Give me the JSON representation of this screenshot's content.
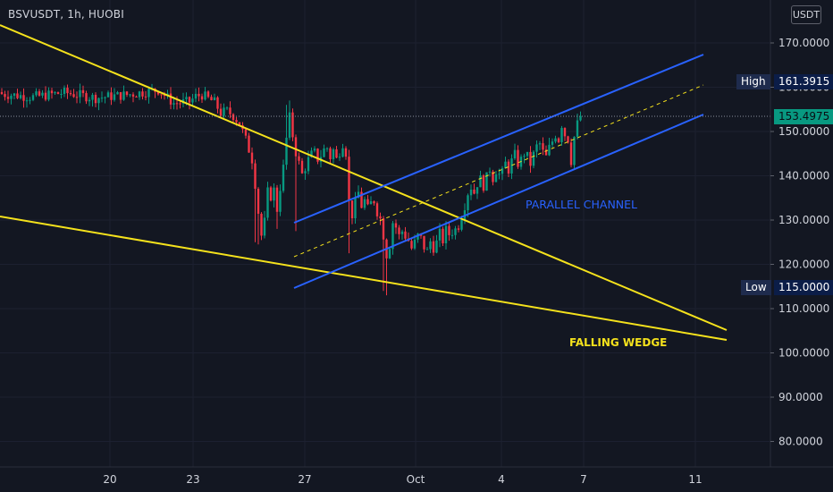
{
  "header": {
    "symbol_line": "BSVUSDT, 1h, HUOBI",
    "unit_button": "USDT"
  },
  "chart_data": {
    "type": "candlestick",
    "symbol": "BSVUSDT",
    "interval": "1h",
    "exchange": "HUOBI",
    "y_ticks": [
      "170.0000",
      "160.0000",
      "150.0000",
      "140.0000",
      "130.0000",
      "120.0000",
      "110.0000",
      "100.0000",
      "90.0000",
      "80.0000"
    ],
    "x_ticks": [
      "20",
      "23",
      "27",
      "Oct",
      "4",
      "7",
      "11"
    ],
    "ylim": [
      75,
      180
    ],
    "current_price": "153.4975",
    "high": {
      "label": "High",
      "value": "161.3915"
    },
    "low": {
      "label": "Low",
      "value": "115.0000"
    },
    "close_path": [
      [
        0,
        158.5
      ],
      [
        10,
        157.8
      ],
      [
        20,
        158.8
      ],
      [
        30,
        157.6
      ],
      [
        40,
        158.3
      ],
      [
        50,
        159.4
      ],
      [
        55,
        156.4
      ],
      [
        60,
        156.7
      ],
      [
        62,
        157.9
      ],
      [
        64,
        158.3
      ],
      [
        66,
        157.4
      ],
      [
        68,
        156.6
      ],
      [
        70,
        154.2
      ],
      [
        72,
        154.6
      ],
      [
        74,
        153.6
      ],
      [
        76,
        151.8
      ],
      [
        78,
        148.1
      ],
      [
        80,
        143.7
      ],
      [
        81,
        138.2
      ],
      [
        82,
        131.8
      ],
      [
        83,
        126.5
      ],
      [
        84,
        129.6
      ],
      [
        85,
        136.3
      ],
      [
        86,
        135.4
      ],
      [
        87,
        136.8
      ],
      [
        88,
        132.4
      ],
      [
        89,
        137.4
      ],
      [
        90,
        141.8
      ],
      [
        91,
        148.4
      ],
      [
        92,
        153.2
      ],
      [
        93,
        149.1
      ],
      [
        94,
        145.3
      ],
      [
        95,
        142.8
      ],
      [
        96,
        140.3
      ],
      [
        97,
        141.9
      ],
      [
        98,
        143.6
      ],
      [
        99,
        144.8
      ],
      [
        100,
        145.2
      ],
      [
        101,
        143.8
      ],
      [
        102,
        144.6
      ],
      [
        103,
        145.9
      ],
      [
        104,
        146.3
      ],
      [
        105,
        144.2
      ],
      [
        106,
        145.8
      ],
      [
        107,
        143.7
      ],
      [
        108,
        145.5
      ],
      [
        109,
        147.4
      ],
      [
        110,
        145.3
      ],
      [
        111,
        134.0
      ],
      [
        112,
        131.2
      ],
      [
        113,
        133.8
      ],
      [
        114,
        136.2
      ],
      [
        115,
        133.2
      ],
      [
        116,
        134.4
      ],
      [
        117,
        132.5
      ],
      [
        118,
        133.8
      ],
      [
        119,
        134.4
      ],
      [
        120,
        131.9
      ],
      [
        121,
        130.3
      ],
      [
        122,
        126.6
      ],
      [
        123,
        122.2
      ],
      [
        124,
        124.4
      ],
      [
        125,
        129.5
      ],
      [
        126,
        128.4
      ],
      [
        127,
        126.4
      ],
      [
        128,
        127.5
      ],
      [
        129,
        126.4
      ],
      [
        130,
        125.4
      ],
      [
        131,
        123.6
      ],
      [
        132,
        124.9
      ],
      [
        133,
        126.4
      ],
      [
        134,
        125.8
      ],
      [
        135,
        123.9
      ],
      [
        136,
        122.9
      ],
      [
        137,
        125.2
      ],
      [
        138,
        123.8
      ],
      [
        139,
        124.9
      ],
      [
        140,
        126.9
      ],
      [
        141,
        125.4
      ],
      [
        142,
        127.7
      ],
      [
        143,
        126.8
      ],
      [
        144,
        127.4
      ],
      [
        145,
        127.9
      ],
      [
        146,
        128.8
      ],
      [
        147,
        131.1
      ],
      [
        148,
        133.4
      ],
      [
        149,
        136.2
      ],
      [
        150,
        137.5
      ],
      [
        151,
        136.2
      ],
      [
        152,
        138.3
      ],
      [
        153,
        139.2
      ],
      [
        154,
        137.8
      ],
      [
        155,
        139.6
      ],
      [
        156,
        141.6
      ],
      [
        157,
        139.5
      ],
      [
        158,
        141.3
      ],
      [
        159,
        140.3
      ],
      [
        160,
        140.6
      ],
      [
        161,
        142.8
      ],
      [
        162,
        141.4
      ],
      [
        163,
        143.3
      ],
      [
        164,
        144.7
      ],
      [
        165,
        142.8
      ],
      [
        166,
        143.6
      ],
      [
        167,
        145.1
      ],
      [
        168,
        144.3
      ],
      [
        169,
        142.7
      ],
      [
        170,
        144.8
      ],
      [
        171,
        146.6
      ],
      [
        172,
        147.2
      ],
      [
        173,
        145.3
      ],
      [
        174,
        144.2
      ],
      [
        175,
        146.3
      ],
      [
        176,
        147.8
      ],
      [
        177,
        149.3
      ],
      [
        178,
        148.2
      ],
      [
        179,
        151.6
      ],
      [
        180,
        149.3
      ],
      [
        181,
        148.3
      ],
      [
        182,
        143.4
      ],
      [
        183,
        148.8
      ],
      [
        184,
        151.7
      ],
      [
        185,
        153.5
      ]
    ],
    "drawings": [
      {
        "type": "trend_line",
        "color": "#f5e21c"
      },
      {
        "type": "trend_line",
        "color": "#f5e21c"
      },
      {
        "type": "trend_line",
        "color": "#2962ff"
      },
      {
        "type": "trend_line",
        "color": "#2962ff"
      },
      {
        "type": "dashed_median",
        "color": "#f5e21c"
      }
    ],
    "annotations": [
      "PARALLEL CHANNEL",
      "FALLING WEDGE"
    ],
    "colors": {
      "background": "#131722",
      "up": "#089981",
      "down": "#f23645",
      "wedge": "#f5e21c",
      "channel": "#2962ff",
      "grid": "#1e222d",
      "axis_text": "#d1d4dc"
    }
  }
}
